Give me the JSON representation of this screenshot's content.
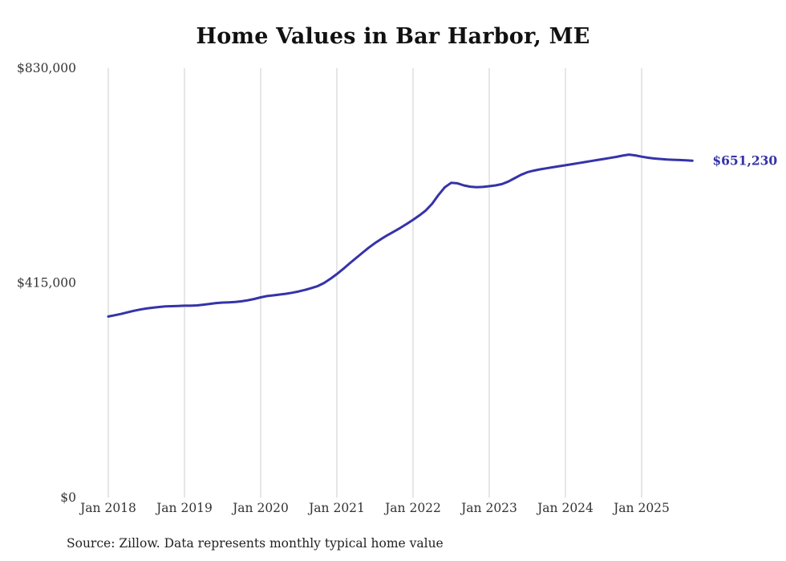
{
  "title": "Home Values in Bar Harbor, ME",
  "annotation": "$651,230",
  "source": "Source: Zillow. Data represents monthly typical home value",
  "colors": {
    "line": "#3533a8",
    "annotation": "#3533a8",
    "grid": "#cccccc",
    "text": "#333333"
  },
  "chart_data": {
    "type": "line",
    "title": "Home Values in Bar Harbor, ME",
    "xlabel": "",
    "ylabel": "",
    "ylim": [
      0,
      830000
    ],
    "x_start": "Jan 2018",
    "x_interval": "monthly",
    "grid": "vertical-only",
    "legend": "none",
    "x_tick_labels": [
      "Jan 2018",
      "Jan 2019",
      "Jan 2020",
      "Jan 2021",
      "Jan 2022",
      "Jan 2023",
      "Jan 2024",
      "Jan 2025"
    ],
    "y_ticks": [
      {
        "label": "$0",
        "value": 0
      },
      {
        "label": "$415,000",
        "value": 415000
      },
      {
        "label": "$830,000",
        "value": 830000
      }
    ],
    "final_value": 651230,
    "final_value_label": "$651,230",
    "values": [
      350000,
      352500,
      355000,
      358000,
      361000,
      363500,
      365500,
      367000,
      368500,
      369500,
      370000,
      370500,
      371000,
      371000,
      371500,
      373000,
      374500,
      376000,
      377000,
      377500,
      378000,
      379500,
      381500,
      384000,
      387000,
      389500,
      391000,
      392500,
      394000,
      396000,
      398500,
      401500,
      405000,
      409000,
      415000,
      423000,
      432000,
      442000,
      452500,
      463000,
      473000,
      483000,
      492000,
      500000,
      507500,
      514500,
      521500,
      529000,
      537000,
      545500,
      555000,
      568000,
      585000,
      600000,
      608500,
      607500,
      603500,
      601000,
      600000,
      600500,
      602000,
      603500,
      606000,
      611000,
      617500,
      624000,
      629000,
      632000,
      634500,
      636500,
      638500,
      640500,
      642500,
      644500,
      646500,
      648500,
      650500,
      652500,
      654500,
      656500,
      658500,
      661000,
      663000,
      661500,
      659000,
      657000,
      655500,
      654500,
      653500,
      653000,
      652500,
      652000,
      651230
    ]
  }
}
